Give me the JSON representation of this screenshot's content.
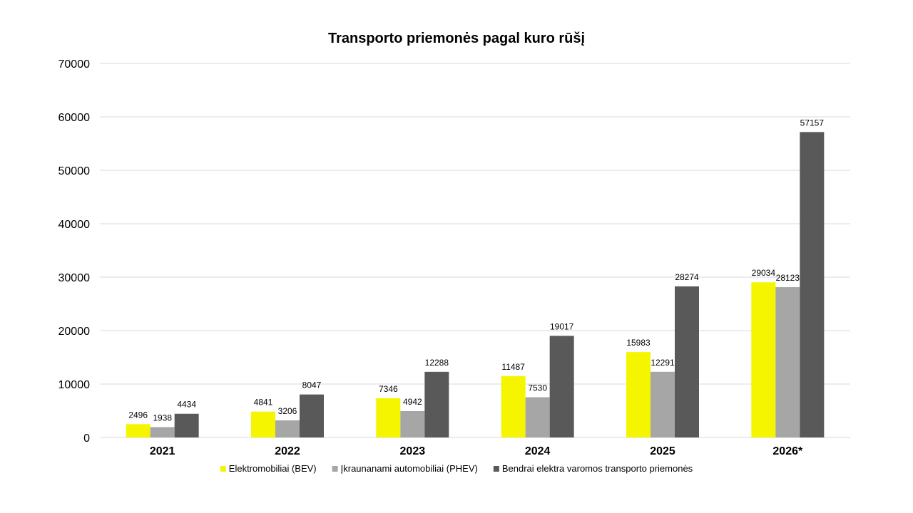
{
  "chart_data": {
    "type": "bar",
    "title": "Transporto priemonės pagal kuro rūšį",
    "xlabel": "",
    "ylabel": "",
    "categories": [
      "2021",
      "2022",
      "2023",
      "2024",
      "2025",
      "2026*"
    ],
    "series": [
      {
        "name": "Elektromobiliai (BEV)",
        "color": "#f5f500",
        "values": [
          2496,
          4841,
          7346,
          11487,
          15983,
          29034
        ]
      },
      {
        "name": "Įkraunanami automobiliai (PHEV)",
        "color": "#a6a6a6",
        "values": [
          1938,
          3206,
          4942,
          7530,
          12291,
          28123
        ]
      },
      {
        "name": "Bendrai elektra varomos transporto priemonės",
        "color": "#595959",
        "values": [
          4434,
          8047,
          12288,
          19017,
          28274,
          57157
        ]
      }
    ],
    "ylim": [
      0,
      70000
    ],
    "yticks": [
      0,
      10000,
      20000,
      30000,
      40000,
      50000,
      60000,
      70000
    ],
    "grid": true,
    "legend_position": "bottom",
    "data_labels": true
  }
}
